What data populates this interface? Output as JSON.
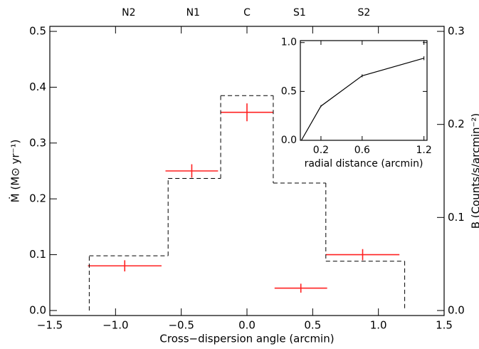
{
  "chart_data": [
    {
      "type": "errorbar",
      "xlabel": "Cross−dispersion angle (arcmin)",
      "ylabel": "Ṁ (M⊙ yr⁻¹)",
      "y2label": "B (Counts/s/arcmin⁻²)",
      "xlim": [
        -1.5,
        1.5
      ],
      "ylim": [
        -0.009,
        0.509
      ],
      "y2lim": [
        -0.0054,
        0.3054
      ],
      "xticks": [
        {
          "value": -1.5,
          "label": "−1.5"
        },
        {
          "value": -1.0,
          "label": "−1.0"
        },
        {
          "value": -0.5,
          "label": "−0.5"
        },
        {
          "value": 0,
          "label": "0.0"
        },
        0.5,
        {
          "value": 1,
          "label": "1.0"
        },
        1.5
      ],
      "yticks": [
        {
          "value": 0,
          "label": "0.0"
        },
        0.1,
        0.2,
        0.3,
        0.4,
        0.5
      ],
      "y2ticks": [
        {
          "value": 0,
          "label": "0.0"
        },
        0.1,
        0.2,
        0.3
      ],
      "top_labels": {
        "labels": [
          "N2",
          "N1",
          "C",
          "S1",
          "S2"
        ],
        "x": [
          -0.9,
          -0.41,
          0.0,
          0.4,
          0.89
        ]
      },
      "series": [
        {
          "kind": "errorbar",
          "color": "#ff2020",
          "x": [
            -0.93,
            -0.42,
            0.0,
            0.41,
            0.88
          ],
          "xerr": [
            0.28,
            0.2,
            0.2,
            0.2,
            0.28
          ],
          "values": [
            0.08,
            0.25,
            0.355,
            0.04,
            0.1
          ],
          "yerr": [
            0.01,
            0.012,
            0.016,
            0.008,
            0.01
          ]
        },
        {
          "kind": "step",
          "axis": "y2",
          "color": "#000000",
          "dashed": true,
          "bins": [
            -1.2,
            -0.6,
            -0.2,
            0.2,
            0.6,
            1.2
          ],
          "values": [
            0.0588,
            0.142,
            0.231,
            0.137,
            0.053
          ]
        }
      ]
    },
    {
      "type": "line",
      "xlabel": "radial distance (arcmin)",
      "xlim": [
        0,
        1.23
      ],
      "ylim": [
        0,
        1.02
      ],
      "xticks": [
        0.2,
        0.6,
        1.2
      ],
      "yticks": [
        {
          "value": 0,
          "label": "0.0"
        },
        0.5,
        {
          "value": 1,
          "label": "1.0"
        }
      ],
      "series": [
        {
          "kind": "line",
          "color": "#000000",
          "x": [
            0.01,
            0.2,
            0.6,
            1.2
          ],
          "values": [
            0.0,
            0.35,
            0.66,
            0.84
          ],
          "yerr": [
            0,
            0.01,
            0.015,
            0.02
          ]
        }
      ]
    }
  ]
}
